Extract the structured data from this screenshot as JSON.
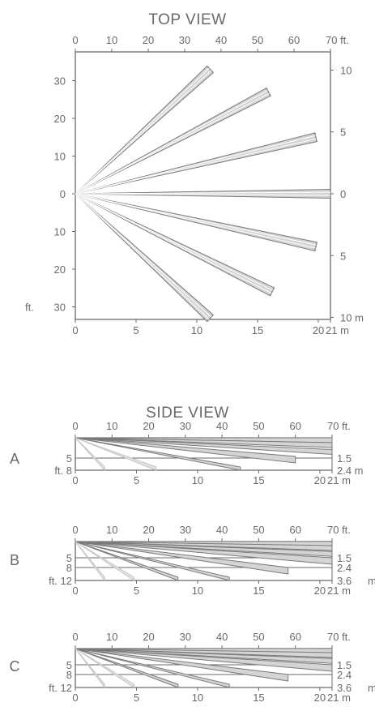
{
  "top_view": {
    "title": "TOP VIEW",
    "top_axis_labels": [
      "0",
      "10",
      "20",
      "30",
      "40",
      "50",
      "60",
      "70 ft."
    ],
    "bottom_axis_labels": [
      "0",
      "5",
      "10",
      "15",
      "20",
      "21 m"
    ],
    "left_axis_labels": [
      "30",
      "20",
      "10",
      "0",
      "10",
      "20",
      "30"
    ],
    "left_axis_unit": "ft.",
    "right_axis_labels": [
      "10",
      "5",
      "0",
      "5",
      "10 m"
    ],
    "beams": [
      {
        "end_ft": [
          37,
          33
        ]
      },
      {
        "end_ft": [
          53,
          27
        ]
      },
      {
        "end_ft": [
          66,
          15
        ]
      },
      {
        "end_ft": [
          70,
          0
        ]
      },
      {
        "end_ft": [
          66,
          -14
        ]
      },
      {
        "end_ft": [
          54,
          -26
        ]
      },
      {
        "end_ft": [
          37,
          -33
        ]
      }
    ]
  },
  "side_view": {
    "title": "SIDE VIEW",
    "panels": [
      {
        "letter": "A",
        "top_axis_labels": [
          "0",
          "10",
          "20",
          "30",
          "40",
          "50",
          "60",
          "70 ft."
        ],
        "bottom_axis_labels": [
          "0",
          "5",
          "10",
          "15",
          "20",
          "21 m"
        ],
        "left_labels": [
          "5",
          "ft. 8"
        ],
        "right_labels": [
          "1.5",
          "2.4 m"
        ]
      },
      {
        "letter": "B",
        "top_axis_labels": [
          "0",
          "10",
          "20",
          "30",
          "40",
          "50",
          "60",
          "70 ft."
        ],
        "bottom_axis_labels": [
          "0",
          "5",
          "10",
          "15",
          "20",
          "21 m"
        ],
        "left_labels": [
          "5",
          "8",
          "ft. 12"
        ],
        "right_labels": [
          "1.5",
          "2.4",
          "3.6",
          "m"
        ]
      },
      {
        "letter": "C",
        "top_axis_labels": [
          "0",
          "10",
          "20",
          "30",
          "40",
          "50",
          "60",
          "70 ft."
        ],
        "bottom_axis_labels": [
          "0",
          "5",
          "10",
          "15",
          "20",
          "21 m"
        ],
        "left_labels": [
          "5",
          "8",
          "ft. 12"
        ],
        "right_labels": [
          "1.5",
          "2.4",
          "3.6",
          "m"
        ]
      }
    ]
  }
}
